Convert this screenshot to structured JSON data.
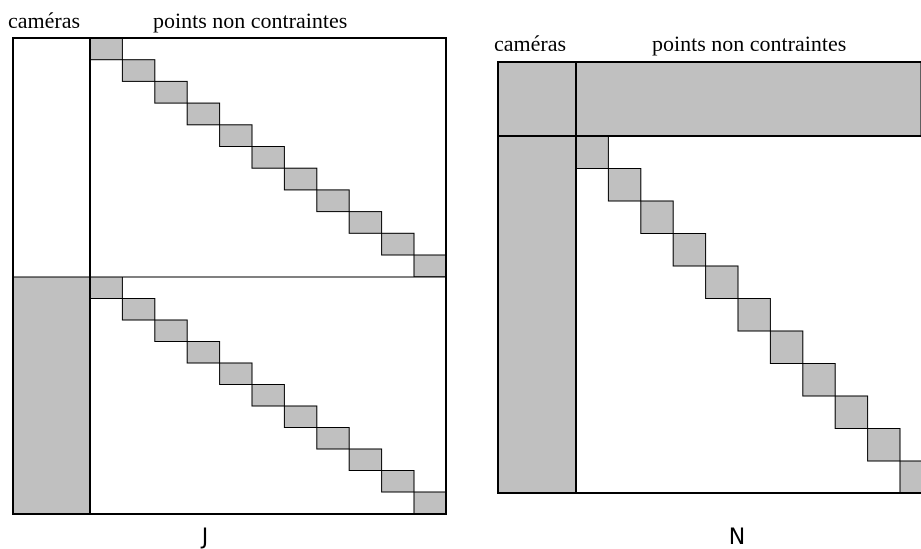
{
  "left_matrix": {
    "label_cameras": "caméras",
    "label_points": "points non contraintes",
    "caption": "J",
    "blocks_per_band": 11
  },
  "right_matrix": {
    "label_cameras": "caméras",
    "label_points": "points non contraintes",
    "caption": "N",
    "blocks_per_band": 11
  },
  "colors": {
    "shade": "#c0c0c0",
    "stroke": "#000000"
  }
}
